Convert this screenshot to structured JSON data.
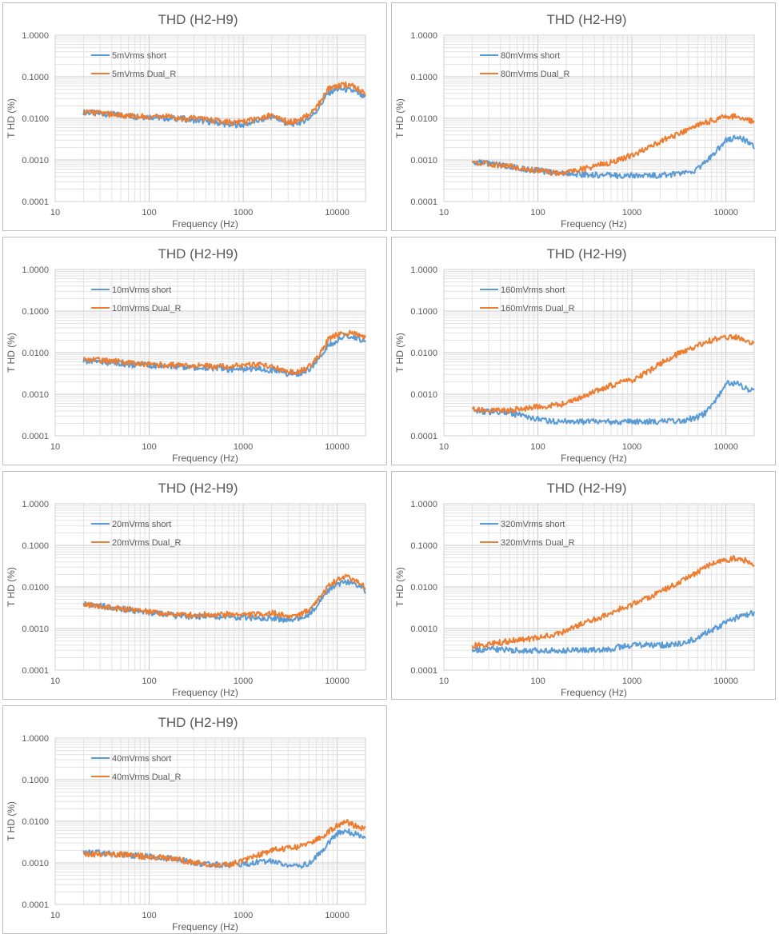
{
  "chart_data": [
    {
      "type": "line",
      "title": "THD (H2-H9)",
      "xlabel": "Frequency (Hz)",
      "ylabel": "T HD (%)",
      "xscale": "log",
      "yscale": "log",
      "xlim": [
        10,
        20000
      ],
      "ylim": [
        0.0001,
        1
      ],
      "xticks": [
        "10",
        "100",
        "1000",
        "10000"
      ],
      "yticks": [
        "1.0000",
        "0.1000",
        "0.0100",
        "0.0010",
        "0.0001"
      ],
      "grid": true,
      "legend": "top-left",
      "series": [
        {
          "name": "5mVrms short",
          "color": "#5b9bd5",
          "x": [
            20,
            30,
            50,
            70,
            100,
            150,
            200,
            300,
            500,
            700,
            1000,
            1500,
            2000,
            2500,
            3000,
            4000,
            5000,
            6000,
            7000,
            8000,
            10000,
            12000,
            15000,
            20000
          ],
          "y": [
            0.014,
            0.013,
            0.012,
            0.011,
            0.011,
            0.01,
            0.01,
            0.009,
            0.008,
            0.007,
            0.007,
            0.009,
            0.011,
            0.009,
            0.007,
            0.008,
            0.01,
            0.015,
            0.025,
            0.04,
            0.05,
            0.05,
            0.045,
            0.03
          ]
        },
        {
          "name": "5mVrms Dual_R",
          "color": "#ed7d31",
          "x": [
            20,
            30,
            50,
            70,
            100,
            150,
            200,
            300,
            500,
            700,
            1000,
            1500,
            2000,
            2500,
            3000,
            4000,
            5000,
            6000,
            7000,
            8000,
            10000,
            12000,
            15000,
            20000
          ],
          "y": [
            0.014,
            0.013,
            0.012,
            0.011,
            0.011,
            0.011,
            0.01,
            0.01,
            0.009,
            0.008,
            0.008,
            0.01,
            0.012,
            0.01,
            0.008,
            0.009,
            0.012,
            0.018,
            0.03,
            0.05,
            0.06,
            0.065,
            0.06,
            0.04
          ]
        }
      ]
    },
    {
      "type": "line",
      "title": "THD (H2-H9)",
      "xlabel": "Frequency (Hz)",
      "ylabel": "T HD (%)",
      "xscale": "log",
      "yscale": "log",
      "xlim": [
        10,
        20000
      ],
      "ylim": [
        0.0001,
        1
      ],
      "xticks": [
        "10",
        "100",
        "1000",
        "10000"
      ],
      "yticks": [
        "1.0000",
        "0.1000",
        "0.0100",
        "0.0010",
        "0.0001"
      ],
      "grid": true,
      "legend": "top-left",
      "series": [
        {
          "name": "80mVrms short",
          "color": "#5b9bd5",
          "x": [
            20,
            30,
            50,
            70,
            100,
            150,
            200,
            300,
            500,
            700,
            1000,
            1500,
            2000,
            3000,
            4000,
            5000,
            7000,
            10000,
            13000,
            16000,
            20000
          ],
          "y": [
            0.0009,
            0.0008,
            0.0007,
            0.0006,
            0.00055,
            0.0005,
            0.00048,
            0.00045,
            0.00043,
            0.00042,
            0.00042,
            0.00042,
            0.00043,
            0.00045,
            0.0005,
            0.0006,
            0.0012,
            0.003,
            0.0035,
            0.003,
            0.002
          ]
        },
        {
          "name": "80mVrms Dual_R",
          "color": "#ed7d31",
          "x": [
            20,
            30,
            50,
            70,
            100,
            150,
            200,
            300,
            500,
            700,
            1000,
            1500,
            2000,
            3000,
            4000,
            5000,
            7000,
            10000,
            13000,
            16000,
            20000
          ],
          "y": [
            0.0009,
            0.0008,
            0.0007,
            0.0006,
            0.00055,
            0.0005,
            0.0005,
            0.0006,
            0.0008,
            0.001,
            0.0013,
            0.002,
            0.0028,
            0.004,
            0.0055,
            0.0068,
            0.0088,
            0.011,
            0.011,
            0.0095,
            0.008
          ]
        }
      ]
    },
    {
      "type": "line",
      "title": "THD (H2-H9)",
      "xlabel": "Frequency (Hz)",
      "ylabel": "T HD (%)",
      "xscale": "log",
      "yscale": "log",
      "xlim": [
        10,
        20000
      ],
      "ylim": [
        0.0001,
        1
      ],
      "xticks": [
        "10",
        "100",
        "1000",
        "10000"
      ],
      "yticks": [
        "1.0000",
        "0.1000",
        "0.0100",
        "0.0010",
        "0.0001"
      ],
      "grid": true,
      "legend": "top-left",
      "series": [
        {
          "name": "10mVrms short",
          "color": "#5b9bd5",
          "x": [
            20,
            30,
            50,
            70,
            100,
            150,
            200,
            300,
            500,
            700,
            1000,
            1500,
            2000,
            3000,
            4000,
            5000,
            6000,
            7000,
            8000,
            10000,
            12000,
            15000,
            20000
          ],
          "y": [
            0.0065,
            0.006,
            0.0055,
            0.005,
            0.005,
            0.0048,
            0.0046,
            0.0044,
            0.0042,
            0.004,
            0.004,
            0.0042,
            0.0038,
            0.003,
            0.0032,
            0.004,
            0.006,
            0.01,
            0.015,
            0.02,
            0.025,
            0.025,
            0.018
          ]
        },
        {
          "name": "10mVrms Dual_R",
          "color": "#ed7d31",
          "x": [
            20,
            30,
            50,
            70,
            100,
            150,
            200,
            300,
            500,
            700,
            1000,
            1500,
            2000,
            3000,
            4000,
            5000,
            6000,
            7000,
            8000,
            10000,
            12000,
            15000,
            20000
          ],
          "y": [
            0.0072,
            0.0065,
            0.006,
            0.0055,
            0.0052,
            0.005,
            0.005,
            0.0048,
            0.0047,
            0.0046,
            0.0048,
            0.0052,
            0.0045,
            0.0035,
            0.0035,
            0.0045,
            0.007,
            0.012,
            0.02,
            0.028,
            0.03,
            0.03,
            0.022
          ]
        }
      ]
    },
    {
      "type": "line",
      "title": "THD (H2-H9)",
      "xlabel": "Frequency (Hz)",
      "ylabel": "T HD (%)",
      "xscale": "log",
      "yscale": "log",
      "xlim": [
        10,
        20000
      ],
      "ylim": [
        0.0001,
        1
      ],
      "xticks": [
        "10",
        "100",
        "1000",
        "10000"
      ],
      "yticks": [
        "1.0000",
        "0.1000",
        "0.0100",
        "0.0010",
        "0.0001"
      ],
      "grid": true,
      "legend": "top-left",
      "series": [
        {
          "name": "160mVrms short",
          "color": "#5b9bd5",
          "x": [
            20,
            30,
            50,
            70,
            100,
            150,
            200,
            300,
            500,
            700,
            1000,
            1500,
            2000,
            3000,
            4000,
            5000,
            6000,
            7000,
            8000,
            10000,
            13000,
            16000,
            20000
          ],
          "y": [
            0.0004,
            0.00038,
            0.00035,
            0.0003,
            0.00025,
            0.00022,
            0.00022,
            0.00022,
            0.00022,
            0.00022,
            0.00022,
            0.00022,
            0.00022,
            0.00022,
            0.00025,
            0.00028,
            0.00035,
            0.0005,
            0.0008,
            0.0018,
            0.0018,
            0.0014,
            0.0012
          ]
        },
        {
          "name": "160mVrms Dual_R",
          "color": "#ed7d31",
          "x": [
            20,
            30,
            50,
            70,
            100,
            150,
            200,
            300,
            500,
            700,
            1000,
            1500,
            2000,
            3000,
            4000,
            5000,
            7000,
            10000,
            13000,
            16000,
            20000
          ],
          "y": [
            0.00045,
            0.0004,
            0.0004,
            0.00045,
            0.0005,
            0.00055,
            0.0006,
            0.0009,
            0.0014,
            0.0018,
            0.0022,
            0.0035,
            0.0055,
            0.009,
            0.012,
            0.015,
            0.02,
            0.023,
            0.023,
            0.02,
            0.017
          ]
        }
      ]
    },
    {
      "type": "line",
      "title": "THD (H2-H9)",
      "xlabel": "Frequency (Hz)",
      "ylabel": "T HD (%)",
      "xscale": "log",
      "yscale": "log",
      "xlim": [
        10,
        20000
      ],
      "ylim": [
        0.0001,
        1
      ],
      "xticks": [
        "10",
        "100",
        "1000",
        "10000"
      ],
      "yticks": [
        "1.0000",
        "0.1000",
        "0.0100",
        "0.0010",
        "0.0001"
      ],
      "grid": true,
      "legend": "top-left",
      "series": [
        {
          "name": "20mVrms short",
          "color": "#5b9bd5",
          "x": [
            20,
            30,
            50,
            70,
            100,
            150,
            200,
            300,
            500,
            700,
            1000,
            1500,
            2000,
            3000,
            4000,
            5000,
            6000,
            7000,
            8000,
            10000,
            12000,
            15000,
            20000
          ],
          "y": [
            0.0042,
            0.0035,
            0.003,
            0.0027,
            0.0024,
            0.0022,
            0.002,
            0.0019,
            0.0019,
            0.0018,
            0.0018,
            0.0018,
            0.0018,
            0.0016,
            0.0018,
            0.0022,
            0.0035,
            0.0055,
            0.008,
            0.012,
            0.013,
            0.012,
            0.008
          ]
        },
        {
          "name": "20mVrms Dual_R",
          "color": "#ed7d31",
          "x": [
            20,
            30,
            50,
            70,
            100,
            150,
            200,
            300,
            500,
            700,
            1000,
            1500,
            2000,
            3000,
            4000,
            5000,
            6000,
            7000,
            8000,
            10000,
            12000,
            15000,
            20000
          ],
          "y": [
            0.0038,
            0.0034,
            0.003,
            0.0028,
            0.0025,
            0.0023,
            0.0022,
            0.0021,
            0.0022,
            0.0022,
            0.0022,
            0.0022,
            0.0024,
            0.002,
            0.0022,
            0.0028,
            0.0045,
            0.007,
            0.01,
            0.015,
            0.017,
            0.015,
            0.01
          ]
        }
      ]
    },
    {
      "type": "line",
      "title": "THD (H2-H9)",
      "xlabel": "Frequency (Hz)",
      "ylabel": "T HD (%)",
      "xscale": "log",
      "yscale": "log",
      "xlim": [
        10,
        20000
      ],
      "ylim": [
        0.0001,
        1
      ],
      "xticks": [
        "10",
        "100",
        "1000",
        "10000"
      ],
      "yticks": [
        "1.0000",
        "0.1000",
        "0.0100",
        "0.0010",
        "0.0001"
      ],
      "grid": true,
      "legend": "top-left",
      "series": [
        {
          "name": "320mVrms short",
          "color": "#5b9bd5",
          "x": [
            20,
            30,
            50,
            70,
            100,
            150,
            200,
            300,
            500,
            700,
            1000,
            1500,
            2000,
            2500,
            3000,
            4000,
            5000,
            7000,
            10000,
            13000,
            16000,
            20000
          ],
          "y": [
            0.0003,
            0.00032,
            0.0003,
            0.0003,
            0.0003,
            0.0003,
            0.0003,
            0.0003,
            0.0003,
            0.00035,
            0.0004,
            0.0004,
            0.0004,
            0.0004,
            0.00042,
            0.0005,
            0.0006,
            0.0009,
            0.0014,
            0.0018,
            0.0021,
            0.0024
          ]
        },
        {
          "name": "320mVrms Dual_R",
          "color": "#ed7d31",
          "x": [
            20,
            30,
            50,
            70,
            100,
            150,
            200,
            300,
            500,
            700,
            1000,
            1500,
            2000,
            3000,
            4000,
            5000,
            7000,
            10000,
            12000,
            15000,
            20000
          ],
          "y": [
            0.00038,
            0.00042,
            0.0005,
            0.00055,
            0.0006,
            0.0007,
            0.0009,
            0.0013,
            0.002,
            0.0028,
            0.0038,
            0.0055,
            0.0075,
            0.012,
            0.017,
            0.023,
            0.035,
            0.045,
            0.048,
            0.045,
            0.036
          ]
        }
      ]
    },
    {
      "type": "line",
      "title": "THD (H2-H9)",
      "xlabel": "Frequency (Hz)",
      "ylabel": "T HD (%)",
      "xscale": "log",
      "yscale": "log",
      "xlim": [
        10,
        20000
      ],
      "ylim": [
        0.0001,
        1
      ],
      "xticks": [
        "10",
        "100",
        "1000",
        "10000"
      ],
      "yticks": [
        "1.0000",
        "0.1000",
        "0.0100",
        "0.0010",
        "0.0001"
      ],
      "grid": true,
      "legend": "top-left",
      "series": [
        {
          "name": "40mVrms short",
          "color": "#5b9bd5",
          "x": [
            20,
            30,
            50,
            70,
            100,
            150,
            200,
            300,
            500,
            700,
            1000,
            1500,
            2000,
            3000,
            4000,
            5000,
            6000,
            7000,
            8000,
            10000,
            12000,
            15000,
            20000
          ],
          "y": [
            0.0018,
            0.0017,
            0.0016,
            0.0015,
            0.0014,
            0.0013,
            0.0012,
            0.001,
            0.0009,
            0.0009,
            0.0009,
            0.0011,
            0.0011,
            0.0009,
            0.0008,
            0.001,
            0.0014,
            0.002,
            0.003,
            0.005,
            0.006,
            0.005,
            0.004
          ]
        },
        {
          "name": "40mVrms Dual_R",
          "color": "#ed7d31",
          "x": [
            20,
            30,
            50,
            70,
            100,
            150,
            200,
            300,
            500,
            700,
            1000,
            1500,
            2000,
            3000,
            4000,
            5000,
            6000,
            7000,
            8000,
            10000,
            12000,
            15000,
            20000
          ],
          "y": [
            0.0016,
            0.0016,
            0.0016,
            0.0015,
            0.0014,
            0.0013,
            0.0012,
            0.001,
            0.0009,
            0.0009,
            0.0011,
            0.0016,
            0.002,
            0.0022,
            0.0025,
            0.003,
            0.0035,
            0.0042,
            0.0055,
            0.008,
            0.01,
            0.008,
            0.0065
          ]
        }
      ]
    }
  ]
}
